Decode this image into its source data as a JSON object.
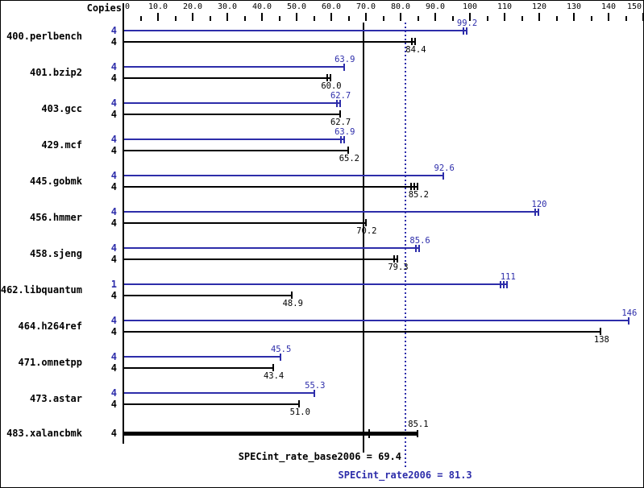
{
  "header": {
    "copies_label": "Copies"
  },
  "chart_data": {
    "type": "bar",
    "orientation": "horizontal",
    "x_axis": {
      "min": 0,
      "max": 150,
      "major_tick": 10,
      "minor_tick": 5,
      "tick_labels": [
        "0",
        "10.0",
        "20.0",
        "30.0",
        "40.0",
        "50.0",
        "60.0",
        "70.0",
        "80.0",
        "90.0",
        "100",
        "110",
        "120",
        "130",
        "140",
        "150"
      ]
    },
    "colors": {
      "peak": "#2d2daa",
      "base": "#000000"
    },
    "benchmarks": [
      {
        "name": "400.perlbench",
        "peak": {
          "copies": "4",
          "value": 99.2,
          "label": "99.2",
          "marks": 2
        },
        "base": {
          "copies": "4",
          "value": 84.4,
          "label": "84.4",
          "marks": 2
        }
      },
      {
        "name": "401.bzip2",
        "peak": {
          "copies": "4",
          "value": 63.9,
          "label": "63.9",
          "marks": 1
        },
        "base": {
          "copies": "4",
          "value": 60.0,
          "label": "60.0",
          "marks": 2
        }
      },
      {
        "name": "403.gcc",
        "peak": {
          "copies": "4",
          "value": 62.7,
          "label": "62.7",
          "marks": 2
        },
        "base": {
          "copies": "4",
          "value": 62.7,
          "label": "62.7",
          "marks": 1
        }
      },
      {
        "name": "429.mcf",
        "peak": {
          "copies": "4",
          "value": 63.9,
          "label": "63.9",
          "marks": 2
        },
        "base": {
          "copies": "4",
          "value": 65.2,
          "label": "65.2",
          "marks": 1
        }
      },
      {
        "name": "445.gobmk",
        "peak": {
          "copies": "4",
          "value": 92.6,
          "label": "92.6",
          "marks": 1
        },
        "base": {
          "copies": "4",
          "value": 85.2,
          "label": "85.2",
          "marks": 3
        }
      },
      {
        "name": "456.hmmer",
        "peak": {
          "copies": "4",
          "value": 120,
          "label": "120",
          "marks": 2
        },
        "base": {
          "copies": "4",
          "value": 70.2,
          "label": "70.2",
          "marks": 1
        }
      },
      {
        "name": "458.sjeng",
        "peak": {
          "copies": "4",
          "value": 85.6,
          "label": "85.6",
          "marks": 2
        },
        "base": {
          "copies": "4",
          "value": 79.3,
          "label": "79.3",
          "marks": 2
        }
      },
      {
        "name": "462.libquantum",
        "peak": {
          "copies": "1",
          "value": 111,
          "label": "111",
          "marks": 3
        },
        "base": {
          "copies": "4",
          "value": 48.9,
          "label": "48.9",
          "marks": 1
        }
      },
      {
        "name": "464.h264ref",
        "peak": {
          "copies": "4",
          "value": 146,
          "label": "146",
          "marks": 1
        },
        "base": {
          "copies": "4",
          "value": 138,
          "label": "138",
          "marks": 1
        }
      },
      {
        "name": "471.omnetpp",
        "peak": {
          "copies": "4",
          "value": 45.5,
          "label": "45.5",
          "marks": 1
        },
        "base": {
          "copies": "4",
          "value": 43.4,
          "label": "43.4",
          "marks": 1
        }
      },
      {
        "name": "473.astar",
        "peak": {
          "copies": "4",
          "value": 55.3,
          "label": "55.3",
          "marks": 1
        },
        "base": {
          "copies": "4",
          "value": 51.0,
          "label": "51.0",
          "marks": 1
        }
      },
      {
        "name": "483.xalancbmk",
        "single": {
          "copies": "4",
          "value": 85.1,
          "label": "85.1",
          "marks": 1,
          "extra_mark_value": 71
        }
      }
    ],
    "reference_lines": [
      {
        "name": "SPECint_rate_base2006",
        "text": "SPECint_rate_base2006 = 69.4",
        "value": 69.4,
        "style": "solid",
        "color": "#000000"
      },
      {
        "name": "SPECint_rate2006",
        "text": "SPECint_rate2006 = 81.3",
        "value": 81.3,
        "style": "dotted",
        "color": "#2d2daa"
      }
    ]
  }
}
